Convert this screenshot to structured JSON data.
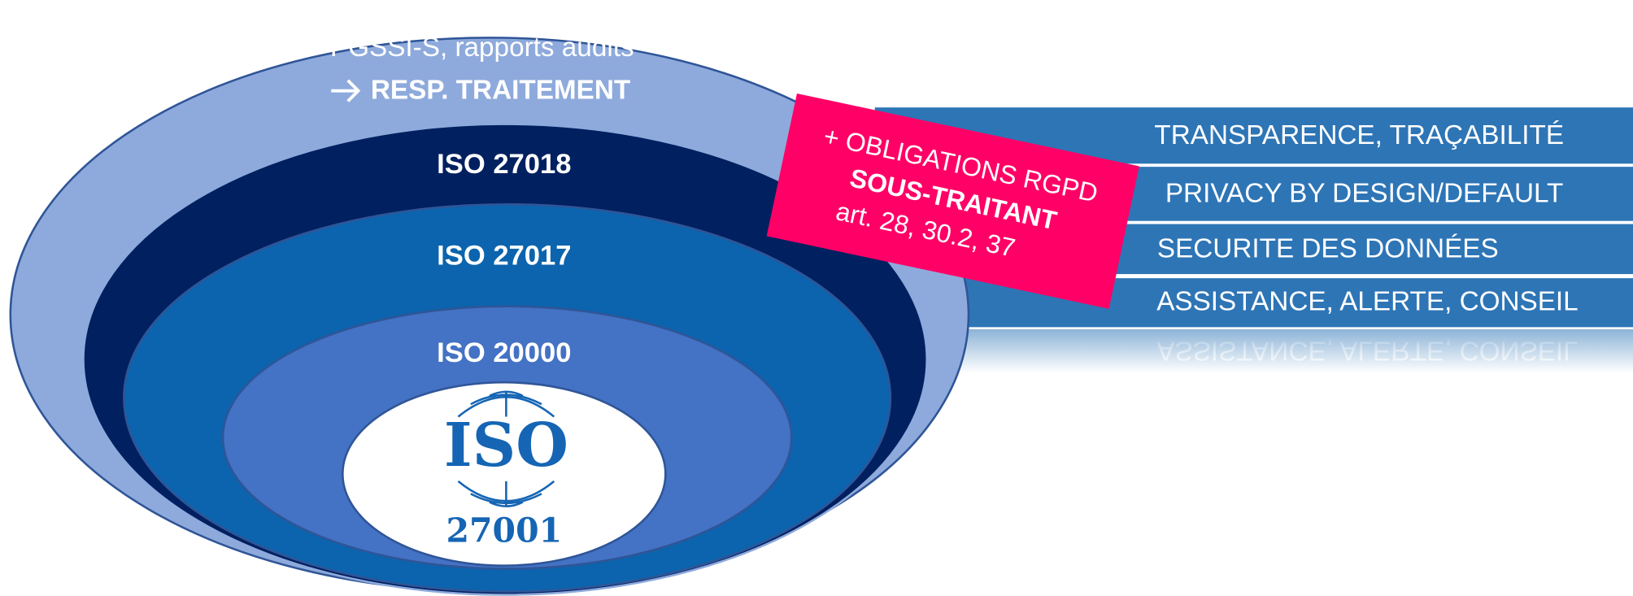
{
  "layers": {
    "outer": {
      "line1": "PGSSI-S, rapports audits",
      "line2": "RESP. TRAITEMENT"
    },
    "rings": [
      "ISO 27018",
      "ISO 27017",
      "ISO 20000"
    ],
    "core": {
      "logo": "ISO",
      "number": "27001"
    }
  },
  "callout": {
    "line1": "+ OBLIGATIONS RGPD",
    "line2": "SOUS-TRAITANT",
    "line3": "art. 28, 30.2, 37"
  },
  "rows": [
    "TRANSPARENCE, TRAÇABILITÉ",
    "PRIVACY BY DESIGN/DEFAULT",
    "SECURITE DES DONNÉES",
    "ASSISTANCE, ALERTE, CONSEIL"
  ]
}
